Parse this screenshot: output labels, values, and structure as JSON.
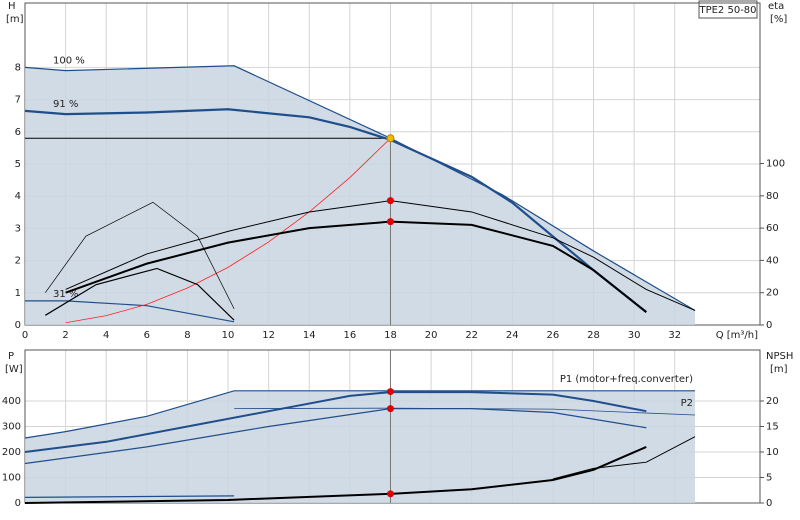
{
  "chart_data": [
    {
      "type": "line",
      "model": "TPE2 50-80",
      "y_label": "H",
      "y_unit": "[m]",
      "y2_label": "eta",
      "y2_unit": "[%]",
      "x_label": "Q [m³/h]",
      "xlim": [
        0,
        36.2
      ],
      "xticks": [
        0,
        2,
        4,
        6,
        8,
        10,
        12,
        14,
        16,
        18,
        20,
        22,
        24,
        26,
        28,
        30,
        32
      ],
      "ylim": [
        0,
        10
      ],
      "yticks": [
        0,
        1,
        2,
        3,
        4,
        5,
        6,
        7,
        8
      ],
      "y2lim": [
        0,
        199.4
      ],
      "y2ticks": [
        0,
        20,
        40,
        60,
        80,
        100
      ],
      "grid": true,
      "series": [
        {
          "name": "100 %",
          "color": "#1f4e8c",
          "width": 1.2,
          "fill": "#c9d5e1",
          "x": [
            0,
            2,
            10.3,
            18,
            23.5,
            28,
            33
          ],
          "values": [
            8,
            7.9,
            8.05,
            5.8,
            4.05,
            2.3,
            0.45
          ]
        },
        {
          "name": "91 %",
          "color": "#1f4e8c",
          "width": 2.2,
          "x": [
            0,
            2,
            6,
            10,
            14,
            16,
            18,
            22,
            24,
            28,
            30.6
          ],
          "values": [
            6.65,
            6.55,
            6.6,
            6.7,
            6.45,
            6.15,
            5.75,
            4.6,
            3.8,
            1.7,
            0.4
          ]
        },
        {
          "name": "31 %",
          "color": "#1f4e8c",
          "width": 1.2,
          "x": [
            0,
            2,
            6,
            10.3
          ],
          "values": [
            0.75,
            0.75,
            0.6,
            0.1
          ]
        },
        {
          "color": "#ff2020",
          "width": 0.8,
          "x": [
            2,
            4,
            6,
            8,
            10,
            12,
            14,
            16,
            18
          ],
          "values": [
            0.07,
            0.29,
            0.64,
            1.15,
            1.79,
            2.58,
            3.51,
            4.58,
            5.8
          ]
        },
        {
          "color": "#000000",
          "width": 1,
          "axis": "y2",
          "x": [
            2,
            6,
            10,
            14,
            18,
            22,
            26,
            28,
            30.6,
            33
          ],
          "values": [
            22,
            44,
            58,
            70,
            77,
            70,
            54,
            42,
            22,
            9
          ]
        },
        {
          "color": "#000000",
          "width": 2,
          "axis": "y2",
          "x": [
            2,
            6,
            10,
            14,
            18,
            22,
            26,
            28,
            30.6
          ],
          "values": [
            20,
            38,
            51,
            60,
            64,
            62,
            49,
            34,
            8
          ]
        },
        {
          "color": "#000000",
          "width": 0.7,
          "axis": "y2",
          "x": [
            1,
            3,
            6.3,
            8.5,
            10.3
          ],
          "values": [
            20,
            55,
            76,
            55,
            10
          ]
        },
        {
          "color": "#000000",
          "width": 1.2,
          "axis": "y2",
          "x": [
            1,
            3.5,
            6.5,
            8.5,
            10.3
          ],
          "values": [
            6,
            25,
            35,
            25,
            3
          ]
        }
      ],
      "markers": [
        {
          "x": 18,
          "y": 5.8,
          "color": "#f5b800"
        },
        {
          "x": 18,
          "y": 77,
          "axis": "y2",
          "color": "#e00000"
        },
        {
          "x": 18,
          "y": 64,
          "axis": "y2",
          "color": "#e00000"
        }
      ]
    },
    {
      "type": "line",
      "y_label": "P",
      "y_unit": "[W]",
      "y2_label": "NPSH",
      "y2_unit": "[m]",
      "xlim": [
        0,
        36.2
      ],
      "xticks": [
        0,
        2,
        4,
        6,
        8,
        10,
        12,
        14,
        16,
        18,
        20,
        22,
        24,
        26,
        28,
        30,
        32
      ],
      "ylim": [
        0,
        600
      ],
      "yticks": [
        0,
        100,
        200,
        300,
        400
      ],
      "y2lim": [
        0,
        30
      ],
      "y2ticks": [
        0,
        5,
        10,
        15,
        20
      ],
      "grid": true,
      "series": [
        {
          "name": "P1 (motor+freq.converter)",
          "color": "#1f4e8c",
          "width": 1.2,
          "fill": "#c9d5e1",
          "x": [
            0,
            2,
            6,
            10.3,
            18,
            33
          ],
          "values": [
            255,
            280,
            340,
            440,
            440,
            440
          ]
        },
        {
          "color": "#1f4e8c",
          "width": 2,
          "x": [
            0,
            4,
            8,
            12,
            16,
            18,
            22,
            26,
            28,
            30.6
          ],
          "values": [
            200,
            240,
            300,
            360,
            420,
            435,
            435,
            425,
            400,
            360
          ]
        },
        {
          "color": "#1f4e8c",
          "width": 1.2,
          "x": [
            0,
            6,
            12,
            18,
            22,
            26,
            30.6
          ],
          "values": [
            155,
            220,
            300,
            370,
            370,
            355,
            295
          ]
        },
        {
          "name": "P2",
          "color": "#1f4e8c",
          "width": 0.8,
          "x": [
            10.3,
            18,
            26,
            33
          ],
          "values": [
            370,
            372,
            368,
            345
          ]
        },
        {
          "color": "#1f4e8c",
          "width": 1.2,
          "x": [
            0,
            10.3
          ],
          "values": [
            22,
            28
          ]
        },
        {
          "color": "#000000",
          "width": 2,
          "axis": "y2",
          "x": [
            0,
            10,
            18,
            22,
            26,
            28,
            30.6
          ],
          "values": [
            0,
            0.6,
            1.8,
            2.7,
            4.5,
            6.5,
            11
          ]
        },
        {
          "color": "#000000",
          "width": 1,
          "axis": "y2",
          "x": [
            26,
            28,
            30.6,
            33
          ],
          "values": [
            4.7,
            6.8,
            8,
            13
          ]
        }
      ],
      "markers": [
        {
          "x": 18,
          "y": 437,
          "color": "#e00000"
        },
        {
          "x": 18,
          "y": 370,
          "color": "#e00000"
        },
        {
          "x": 18,
          "y": 1.8,
          "axis": "y2",
          "color": "#e00000"
        }
      ]
    }
  ]
}
